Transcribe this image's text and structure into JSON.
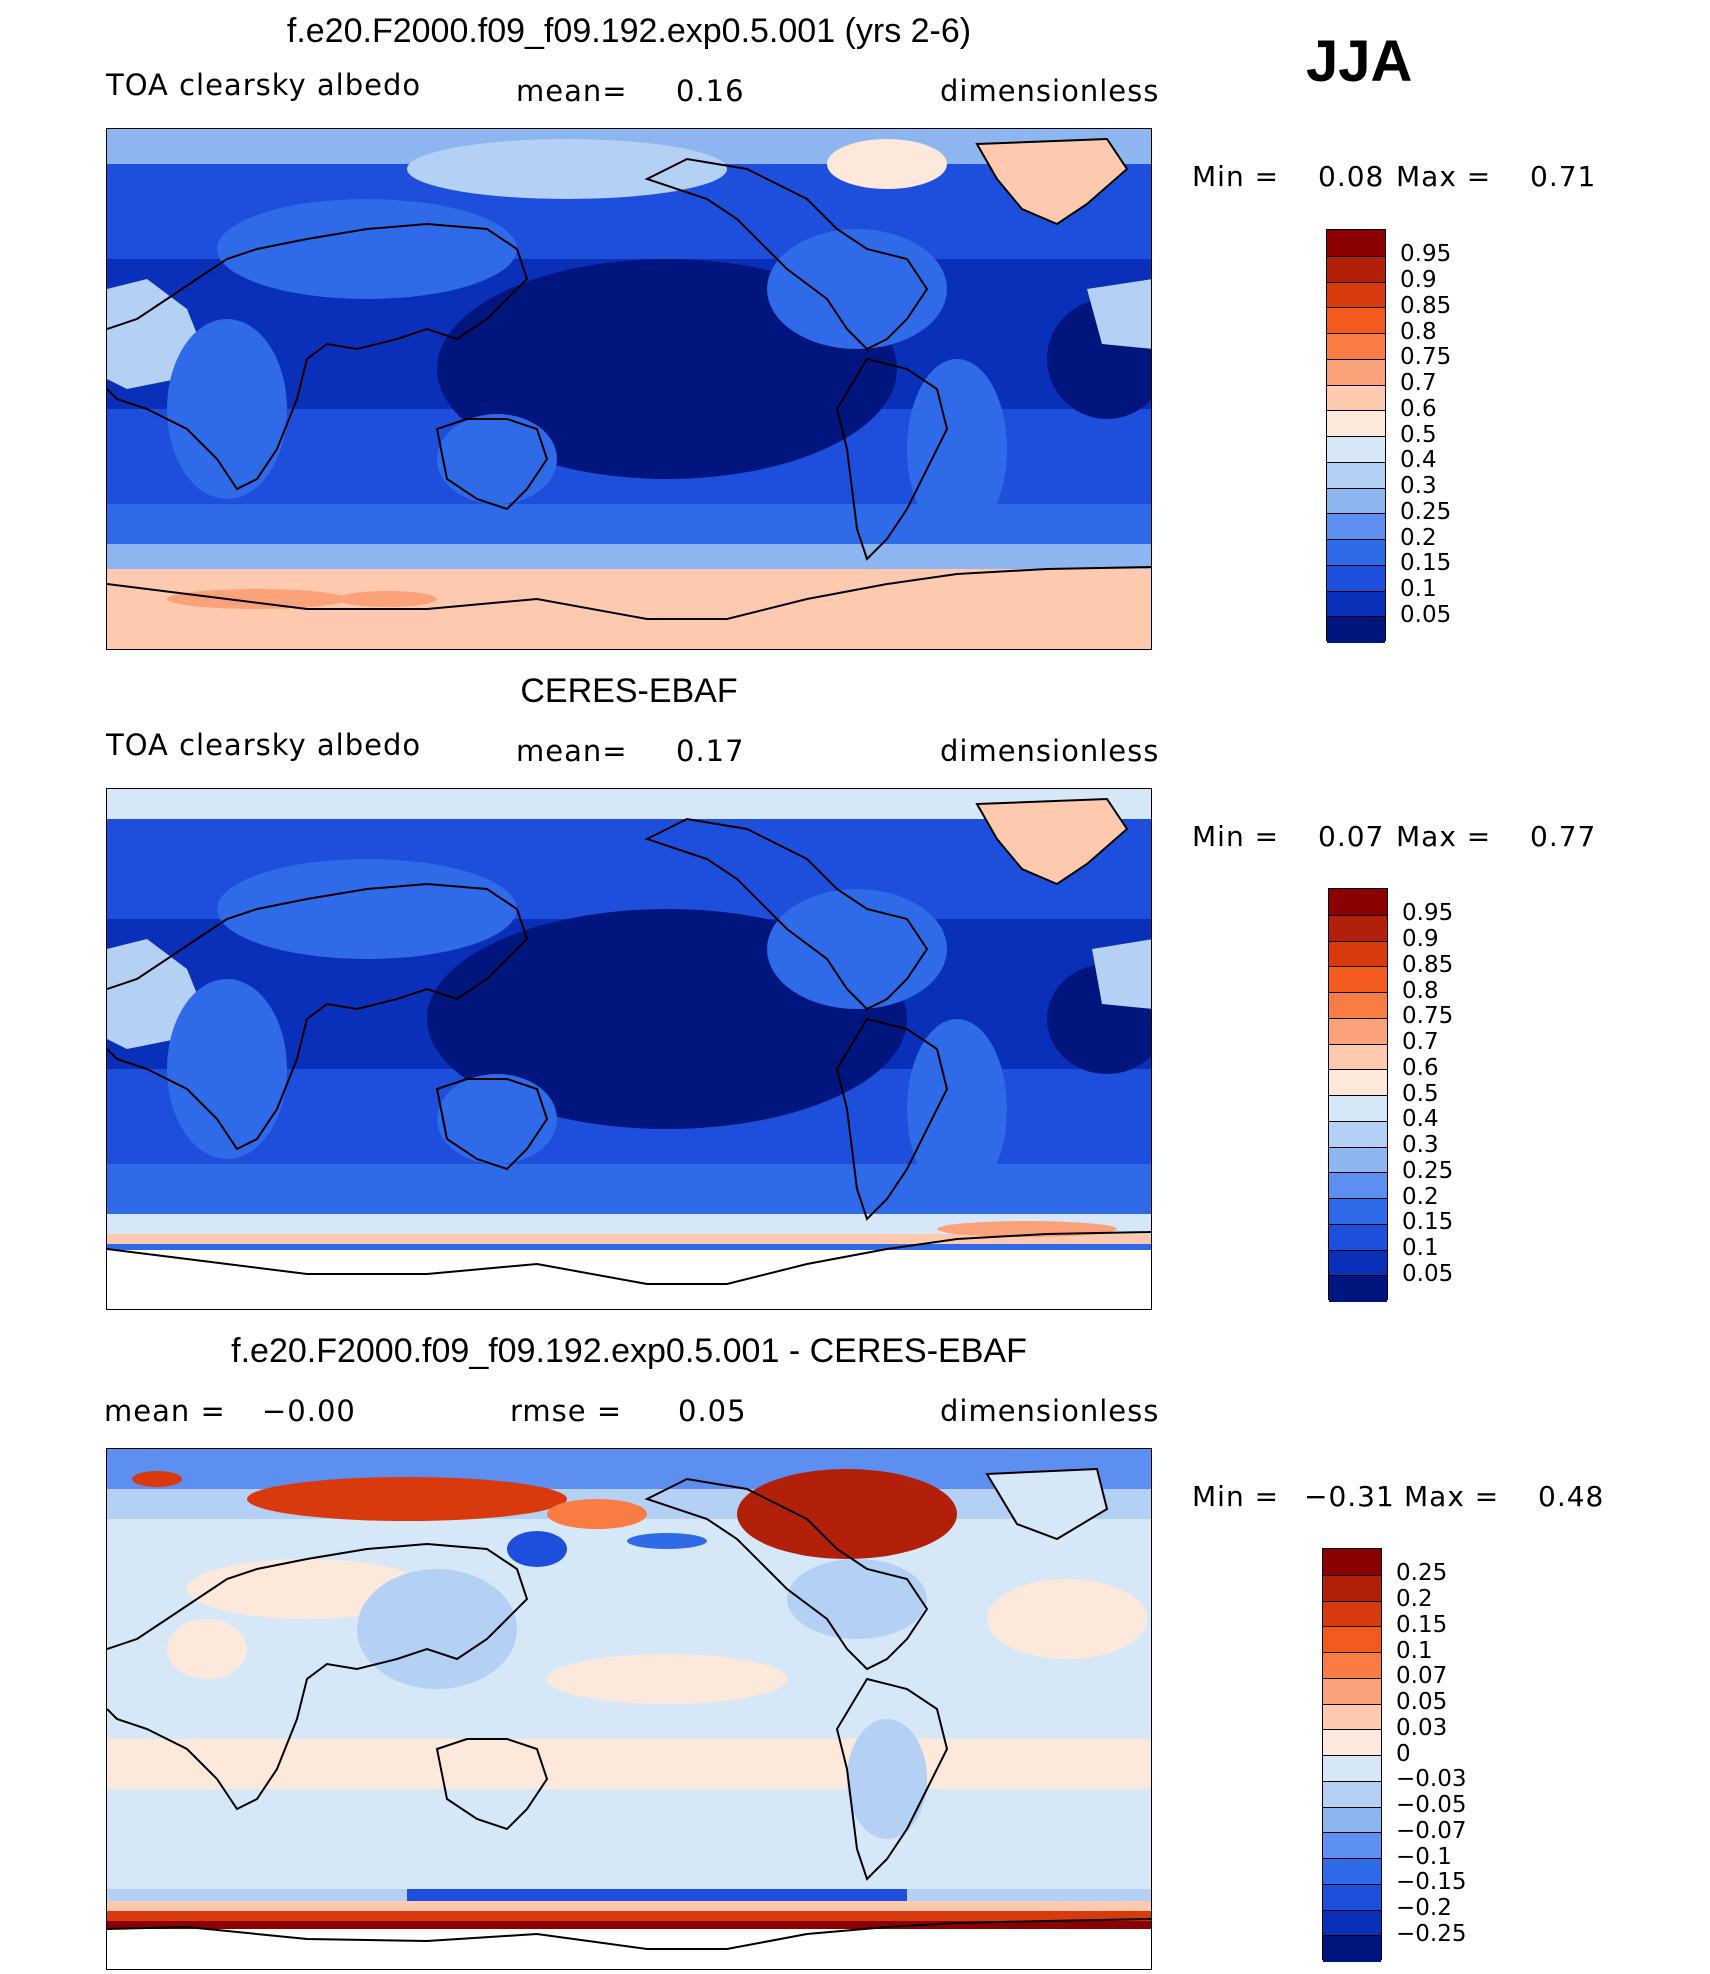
{
  "season": "JJA",
  "panels": [
    {
      "id": "model",
      "title": "f.e20.F2000.f09_f09.192.exp0.5.001 (yrs 2-6)",
      "left_label": "TOA clearsky albedo",
      "center_label": "mean=",
      "center_value": "0.16",
      "right_label": "dimensionless",
      "min_label": "Min =",
      "min_value": "0.08",
      "max_label": "Max =",
      "max_value": "0.71",
      "colorbar": {
        "labels": [
          "0.95",
          "0.9",
          "0.85",
          "0.8",
          "0.75",
          "0.7",
          "0.6",
          "0.5",
          "0.4",
          "0.3",
          "0.25",
          "0.2",
          "0.15",
          "0.1",
          "0.05"
        ],
        "colors": [
          "#8b0000",
          "#b2200a",
          "#d93a0d",
          "#f25a1e",
          "#fa7c45",
          "#fca27a",
          "#fdcab0",
          "#fde8dc",
          "#d6e8f8",
          "#b4d0f4",
          "#8db5f0",
          "#5d8ff0",
          "#2f6ae8",
          "#1e4fdc",
          "#0a2fb8",
          "#00157e"
        ]
      }
    },
    {
      "id": "obs",
      "title": "CERES-EBAF",
      "left_label": "TOA clearsky albedo",
      "center_label": "mean=",
      "center_value": "0.17",
      "right_label": "dimensionless",
      "min_label": "Min =",
      "min_value": "0.07",
      "max_label": "Max =",
      "max_value": "0.77",
      "colorbar": {
        "labels": [
          "0.95",
          "0.9",
          "0.85",
          "0.8",
          "0.75",
          "0.7",
          "0.6",
          "0.5",
          "0.4",
          "0.3",
          "0.25",
          "0.2",
          "0.15",
          "0.1",
          "0.05"
        ],
        "colors": [
          "#8b0000",
          "#b2200a",
          "#d93a0d",
          "#f25a1e",
          "#fa7c45",
          "#fca27a",
          "#fdcab0",
          "#fde8dc",
          "#d6e8f8",
          "#b4d0f4",
          "#8db5f0",
          "#5d8ff0",
          "#2f6ae8",
          "#1e4fdc",
          "#0a2fb8",
          "#00157e"
        ]
      }
    },
    {
      "id": "diff",
      "title": "f.e20.F2000.f09_f09.192.exp0.5.001 - CERES-EBAF",
      "left_label": "mean =",
      "left_value": "−0.00",
      "center_label": "rmse =",
      "center_value": "0.05",
      "right_label": "dimensionless",
      "min_label": "Min =",
      "min_value": "−0.31",
      "max_label": "Max =",
      "max_value": "0.48",
      "colorbar": {
        "labels": [
          "0.25",
          "0.2",
          "0.15",
          "0.1",
          "0.07",
          "0.05",
          "0.03",
          "0",
          "−0.03",
          "−0.05",
          "−0.07",
          "−0.1",
          "−0.15",
          "−0.2",
          "−0.25"
        ],
        "colors": [
          "#8b0000",
          "#b2200a",
          "#d93a0d",
          "#f25a1e",
          "#fa7c45",
          "#fca27a",
          "#fdcab0",
          "#fde8dc",
          "#d6e8f8",
          "#b4d0f4",
          "#8db5f0",
          "#5d8ff0",
          "#2f6ae8",
          "#1e4fdc",
          "#0a2fb8",
          "#00157e"
        ]
      }
    }
  ]
}
